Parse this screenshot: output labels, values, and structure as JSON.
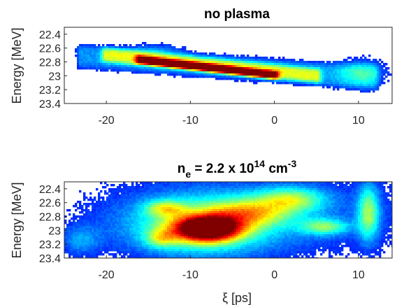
{
  "chart_data": [
    {
      "type": "heatmap",
      "title": "no plasma",
      "xlabel": "",
      "ylabel": "Energy [MeV]",
      "xlim": [
        -25,
        14
      ],
      "ylim": [
        22.3,
        23.4
      ],
      "y_reversed": true,
      "x_ticks": [
        "-20",
        "-10",
        "0",
        "10"
      ],
      "x_tick_values": [
        -20,
        -10,
        0,
        10
      ],
      "y_ticks": [
        "22.4",
        "22.6",
        "22.8",
        "23",
        "23.2",
        "23.4"
      ],
      "y_tick_values": [
        22.4,
        22.6,
        22.8,
        23.0,
        23.2,
        23.4
      ],
      "colormap": "jet",
      "grid": false,
      "features": [
        {
          "kind": "band",
          "x_start": -23,
          "x_end": 11.8,
          "e_start": 22.72,
          "e_end": 23.03,
          "half_width": 0.15,
          "intensity": 0.18
        },
        {
          "kind": "band",
          "x_start": -20,
          "x_end": 5,
          "e_start": 22.7,
          "e_end": 23.0,
          "half_width": 0.09,
          "intensity": 0.35
        },
        {
          "kind": "band",
          "x_start": -16,
          "x_end": 0,
          "e_start": 22.77,
          "e_end": 22.99,
          "half_width": 0.055,
          "intensity": 0.5
        },
        {
          "kind": "band",
          "x_start": -14,
          "x_end": -1,
          "e_start": 22.8,
          "e_end": 22.98,
          "half_width": 0.028,
          "intensity": 0.45
        },
        {
          "kind": "blob",
          "x": 10.5,
          "e": 22.95,
          "sx": 2.0,
          "se": 0.14,
          "intensity": 0.2
        },
        {
          "kind": "blob",
          "x": -14,
          "e": 22.62,
          "sx": 2.5,
          "se": 0.07,
          "intensity": 0.12
        }
      ]
    },
    {
      "type": "heatmap",
      "title_main": "n",
      "title_sub": "e",
      "title_mid": " = 2.2 x 10",
      "title_exp": "14",
      "title_unit": " cm",
      "title_unit_exp": "-3",
      "xlabel": "ξ [ps]",
      "ylabel": "Energy [MeV]",
      "xlim": [
        -25,
        14
      ],
      "ylim": [
        22.3,
        23.4
      ],
      "y_reversed": true,
      "x_ticks": [
        "-20",
        "-10",
        "0",
        "10"
      ],
      "x_tick_values": [
        -20,
        -10,
        0,
        10
      ],
      "y_ticks": [
        "22.4",
        "22.6",
        "22.8",
        "23",
        "23.2",
        "23.4"
      ],
      "y_tick_values": [
        22.4,
        22.6,
        22.8,
        23.0,
        23.2,
        23.4
      ],
      "colormap": "jet",
      "grid": false,
      "features": [
        {
          "kind": "blob",
          "x": -8,
          "e": 22.98,
          "sx": 2.6,
          "se": 0.12,
          "intensity": 0.95
        },
        {
          "kind": "blob",
          "x": -9,
          "e": 22.95,
          "sx": 5.5,
          "se": 0.28,
          "intensity": 0.35
        },
        {
          "kind": "blob",
          "x": -13,
          "e": 22.68,
          "sx": 1.6,
          "se": 0.08,
          "intensity": 0.3
        },
        {
          "kind": "blob",
          "x": -13.5,
          "e": 23.12,
          "sx": 1.3,
          "se": 0.09,
          "intensity": 0.25
        },
        {
          "kind": "blob",
          "x": -3,
          "e": 22.75,
          "sx": 3.5,
          "se": 0.14,
          "intensity": 0.35
        },
        {
          "kind": "blob",
          "x": 2,
          "e": 22.55,
          "sx": 2.8,
          "se": 0.12,
          "intensity": 0.35
        },
        {
          "kind": "blob",
          "x": 6,
          "e": 22.95,
          "sx": 2.0,
          "se": 0.08,
          "intensity": 0.32
        },
        {
          "kind": "blob",
          "x": 11.2,
          "e": 22.75,
          "sx": 0.9,
          "se": 0.28,
          "intensity": 0.38
        },
        {
          "kind": "blob",
          "x": -5,
          "e": 22.85,
          "sx": 12,
          "se": 0.4,
          "intensity": 0.12
        },
        {
          "kind": "blob",
          "x": -23,
          "e": 23.15,
          "sx": 1.6,
          "se": 0.15,
          "intensity": 0.16
        },
        {
          "kind": "blob",
          "x": 0,
          "e": 22.7,
          "sx": 14,
          "se": 0.45,
          "intensity": 0.06
        }
      ]
    }
  ]
}
